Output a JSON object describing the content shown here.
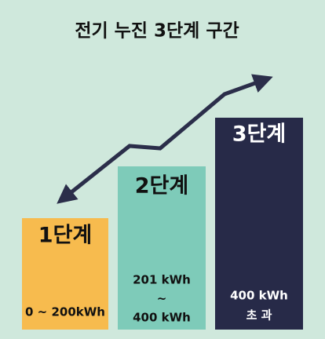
{
  "title": "전기 누진 3단계 구간",
  "tiers": [
    {
      "label": "1단계",
      "range": [
        "0 ~ 200kWh"
      ]
    },
    {
      "label": "2단계",
      "range": [
        "201 kWh",
        "~",
        "400 kWh"
      ]
    },
    {
      "label": "3단계",
      "range": [
        "400 kWh",
        "초 과"
      ]
    }
  ]
}
